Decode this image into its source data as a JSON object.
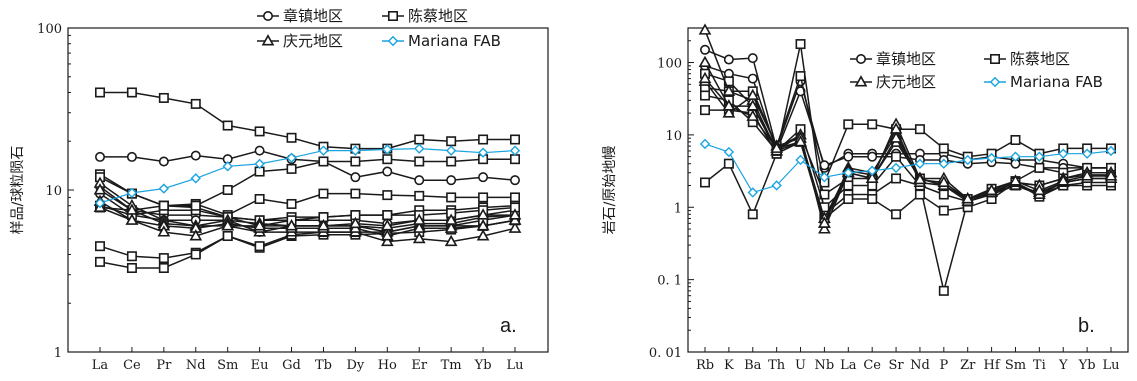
{
  "chart_data": [
    {
      "type": "line",
      "panel_label": "a.",
      "ylabel": "样品/球粒陨石",
      "yscale": "log",
      "ylim": [
        1,
        100
      ],
      "y_ticks": [
        {
          "value": 1,
          "label": "1"
        },
        {
          "value": 10,
          "label": "10"
        },
        {
          "value": 100,
          "label": "100"
        }
      ],
      "categories": [
        "La",
        "Ce",
        "Pr",
        "Nd",
        "Sm",
        "Eu",
        "Gd",
        "Tb",
        "Dy",
        "Ho",
        "Er",
        "Tm",
        "Yb",
        "Lu"
      ],
      "legend": {
        "placement": "top-right",
        "entries": [
          {
            "label": "章镇地区",
            "marker": "circle",
            "color": "#1a1a1a"
          },
          {
            "label": "陈蔡地区",
            "marker": "square",
            "color": "#1a1a1a"
          },
          {
            "label": "庆元地区",
            "marker": "triangle",
            "color": "#1a1a1a"
          },
          {
            "label": "Mariana FAB",
            "marker": "diamond",
            "color": "#1aa3e0"
          }
        ]
      },
      "series": [
        {
          "group": 0,
          "values": [
            16,
            16,
            15,
            16.3,
            15.5,
            17.5,
            15.5,
            15,
            12,
            13,
            11.5,
            11.5,
            12,
            11.5
          ]
        },
        {
          "group": 0,
          "values": [
            10.5,
            7.5,
            7,
            7,
            6.8,
            6,
            6.5,
            6.5,
            6.5,
            6.2,
            6.5,
            6.5,
            7,
            7.5
          ]
        },
        {
          "group": 0,
          "values": [
            9.5,
            7,
            6.5,
            6.5,
            6.5,
            5.5,
            6,
            6,
            6,
            5.8,
            6.2,
            6.2,
            6.8,
            7
          ]
        },
        {
          "group": 1,
          "values": [
            40,
            40,
            37,
            34,
            25,
            23,
            21,
            18.5,
            18,
            18,
            20.5,
            20,
            20.5,
            20.5
          ]
        },
        {
          "group": 1,
          "values": [
            12.5,
            9.5,
            8,
            8.2,
            7,
            8.8,
            8.2,
            9.5,
            9.5,
            9.3,
            9.2,
            9,
            9,
            9
          ]
        },
        {
          "group": 1,
          "values": [
            7.8,
            7.5,
            8,
            7.8,
            6.8,
            6.5,
            6.8,
            6.8,
            7,
            7,
            7.5,
            7.5,
            7.8,
            8
          ]
        },
        {
          "group": 1,
          "values": [
            4.5,
            3.9,
            3.8,
            4.1,
            5.2,
            4.4,
            5.2,
            5.3,
            5.3,
            5.4,
            5.5,
            5.7,
            6,
            6.5
          ]
        },
        {
          "group": 1,
          "values": [
            3.6,
            3.3,
            3.3,
            4,
            5.2,
            4.5,
            5.3,
            5.5,
            5.5,
            5.5,
            6,
            6,
            6.5,
            7
          ]
        },
        {
          "group": 1,
          "values": [
            8,
            7,
            7.5,
            7.5,
            6.8,
            6.5,
            6.5,
            6.8,
            7,
            7,
            7,
            7.2,
            7.5,
            7.8
          ]
        },
        {
          "group": 1,
          "values": [
            12,
            9.5,
            8,
            8,
            10,
            13,
            13.5,
            15,
            15,
            15.5,
            15,
            15,
            15.5,
            15.5
          ]
        },
        {
          "group": 2,
          "values": [
            11,
            8,
            6.5,
            6,
            6,
            5.5,
            5.5,
            5.5,
            5.5,
            4.8,
            5,
            4.8,
            5.2,
            5.8
          ]
        },
        {
          "group": 2,
          "values": [
            10,
            7.5,
            6.2,
            6,
            6.5,
            6.2,
            6,
            6,
            6,
            5.5,
            6,
            6,
            6,
            6.5
          ]
        },
        {
          "group": 2,
          "values": [
            8.5,
            6.5,
            6,
            5.8,
            6.2,
            5.8,
            5.8,
            5.8,
            5.8,
            5.2,
            5.8,
            5.8,
            6,
            6.5
          ]
        },
        {
          "group": 2,
          "values": [
            7.8,
            6.5,
            5.5,
            5.2,
            6,
            6,
            6,
            6,
            6.2,
            6,
            6.5,
            6.5,
            7,
            7
          ]
        },
        {
          "group": 3,
          "values": [
            8.3,
            9.6,
            10.2,
            11.8,
            14,
            14.5,
            15.8,
            17.5,
            17.5,
            17.8,
            18,
            17.5,
            17,
            17.5
          ]
        }
      ]
    },
    {
      "type": "line",
      "panel_label": "b.",
      "ylabel": "岩石/原始地幔",
      "yscale": "log",
      "ylim": [
        0.01,
        300
      ],
      "y_ticks": [
        {
          "value": 0.01,
          "label": "0. 01"
        },
        {
          "value": 0.1,
          "label": "0. 1"
        },
        {
          "value": 1,
          "label": "1"
        },
        {
          "value": 10,
          "label": "10"
        },
        {
          "value": 100,
          "label": "100"
        }
      ],
      "categories": [
        "Rb",
        "K",
        "Ba",
        "Th",
        "U",
        "Nb",
        "La",
        "Ce",
        "Sr",
        "Nd",
        "P",
        "Zr",
        "Hf",
        "Sm",
        "Ti",
        "Y",
        "Yb",
        "Lu"
      ],
      "legend": {
        "placement": "top-right",
        "entries": [
          {
            "label": "章镇地区",
            "marker": "circle",
            "color": "#1a1a1a"
          },
          {
            "label": "陈蔡地区",
            "marker": "square",
            "color": "#1a1a1a"
          },
          {
            "label": "庆元地区",
            "marker": "triangle",
            "color": "#1a1a1a"
          },
          {
            "label": "Mariana FAB",
            "marker": "diamond",
            "color": "#1aa3e0"
          }
        ]
      },
      "series": [
        {
          "group": 0,
          "values": [
            150,
            110,
            115,
            6.5,
            55,
            3.5,
            5.5,
            5.5,
            5.5,
            5.5,
            5.5,
            4.5,
            5,
            4.5,
            4.5,
            4,
            3.5,
            3.5
          ]
        },
        {
          "group": 0,
          "values": [
            90,
            70,
            60,
            6,
            40,
            3.8,
            5,
            5,
            5,
            4.5,
            4.5,
            4,
            4.2,
            4,
            3.5,
            3.5,
            3.5,
            3.5
          ]
        },
        {
          "group": 1,
          "values": [
            22,
            22,
            20,
            5.5,
            180,
            0.8,
            1.5,
            1.5,
            2.5,
            2,
            0.07,
            1.2,
            1.5,
            2,
            1.5,
            2,
            2,
            2
          ]
        },
        {
          "group": 1,
          "values": [
            45,
            40,
            40,
            7,
            65,
            2.2,
            14,
            14,
            12,
            12,
            6.5,
            5,
            5.5,
            8.5,
            5.5,
            6.5,
            6.5,
            6.5
          ]
        },
        {
          "group": 1,
          "values": [
            2.2,
            4,
            0.8,
            5.5,
            8,
            0.7,
            1.3,
            1.3,
            0.8,
            1.5,
            0.9,
            1,
            1.3,
            2.2,
            1.4,
            2,
            2.2,
            2.2
          ]
        },
        {
          "group": 1,
          "values": [
            70,
            55,
            25,
            6.5,
            10,
            1.5,
            2.5,
            2.5,
            8,
            2.5,
            2,
            1.3,
            1.8,
            2.3,
            3.5,
            3,
            3.5,
            3.5
          ]
        },
        {
          "group": 1,
          "values": [
            35,
            30,
            15,
            6,
            12,
            1,
            2,
            2,
            5,
            2,
            1.5,
            1.2,
            1.6,
            2.2,
            2,
            2.5,
            2.8,
            2.8
          ]
        },
        {
          "group": 2,
          "values": [
            280,
            40,
            30,
            6,
            10,
            0.5,
            3,
            2.5,
            14,
            2.5,
            2.5,
            1.3,
            1.6,
            2.2,
            2,
            2.5,
            3,
            3
          ]
        },
        {
          "group": 2,
          "values": [
            100,
            25,
            25,
            6,
            8,
            0.6,
            3.5,
            3,
            10,
            2.5,
            2,
            1.3,
            1.6,
            2,
            1.6,
            2.2,
            2.5,
            2.5
          ]
        },
        {
          "group": 2,
          "values": [
            55,
            20,
            35,
            7,
            9,
            0.7,
            3.2,
            2.8,
            12,
            2.2,
            2,
            1.2,
            1.6,
            2.2,
            1.5,
            2.2,
            2.5,
            2.5
          ]
        },
        {
          "group": 2,
          "values": [
            60,
            25,
            18,
            6.5,
            8,
            0.6,
            3,
            2.5,
            9,
            2.4,
            2.2,
            1.3,
            1.7,
            2.3,
            1.7,
            2.3,
            2.7,
            2.7
          ]
        },
        {
          "group": 3,
          "values": [
            7.5,
            5.8,
            1.6,
            2,
            4.5,
            2.6,
            3,
            3.2,
            3.5,
            4,
            4,
            4.5,
            4.8,
            5,
            5,
            5.5,
            5.5,
            6
          ]
        }
      ]
    }
  ]
}
